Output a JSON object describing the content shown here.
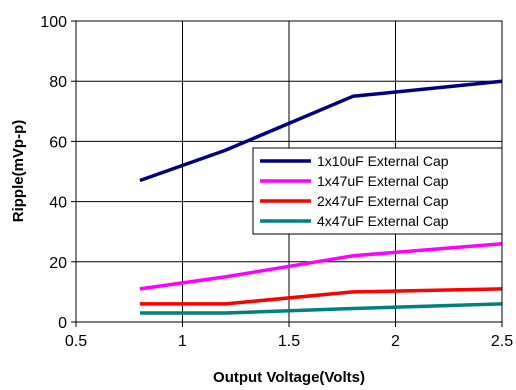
{
  "chart_data": {
    "type": "line",
    "title": "",
    "xlabel": "Output Voltage(Volts)",
    "ylabel": "Ripple(mVp-p)",
    "xlim": [
      0.5,
      2.5
    ],
    "ylim": [
      0,
      100
    ],
    "x_ticks": [
      0.5,
      1,
      1.5,
      2,
      2.5
    ],
    "x_tick_labels": [
      "0.5",
      "1",
      "1.5",
      "2",
      "2.5"
    ],
    "y_ticks": [
      0,
      20,
      40,
      60,
      80,
      100
    ],
    "y_tick_labels": [
      "0",
      "20",
      "40",
      "60",
      "80",
      "100"
    ],
    "grid": true,
    "legend_position": "center-right",
    "series": [
      {
        "name": "1x10uF External Cap",
        "color": "#000080",
        "x": [
          0.8,
          1.2,
          1.8,
          2.5
        ],
        "values": [
          47,
          57,
          75,
          80
        ]
      },
      {
        "name": "1x47uF External Cap",
        "color": "#ff00ff",
        "x": [
          0.8,
          1.2,
          1.8,
          2.5
        ],
        "values": [
          11,
          15,
          22,
          26
        ]
      },
      {
        "name": "2x47uF External Cap",
        "color": "#ff0000",
        "x": [
          0.8,
          1.2,
          1.8,
          2.5
        ],
        "values": [
          6,
          6,
          10,
          11
        ]
      },
      {
        "name": "4x47uF External Cap",
        "color": "#008080",
        "x": [
          0.8,
          1.2,
          1.8,
          2.5
        ],
        "values": [
          3,
          3,
          4.5,
          6
        ]
      }
    ]
  }
}
